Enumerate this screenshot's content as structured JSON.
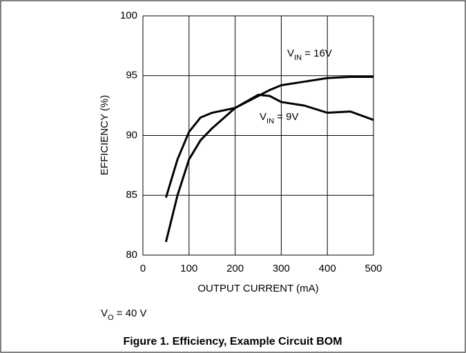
{
  "chart_data": {
    "type": "line",
    "ylabel": "EFFICIENCY (%)",
    "xlabel": "OUTPUT CURRENT (mA)",
    "x": [
      50,
      75,
      100,
      125,
      150,
      200,
      250,
      275,
      300,
      350,
      400,
      450,
      500
    ],
    "series": [
      {
        "color": "#000000",
        "values": [
          84.8,
          88,
          90.3,
          91.5,
          91.9,
          92.3,
          93.4,
          93.3,
          92.8,
          92.5,
          91.9,
          92.0,
          91.3
        ]
      },
      {
        "color": "#000000",
        "values": [
          81.1,
          85,
          88,
          89.6,
          90.6,
          92.3,
          93.3,
          93.8,
          94.2,
          94.5,
          94.8,
          94.9,
          94.9
        ]
      }
    ],
    "annotations": [
      {
        "parts": [
          "V",
          "IN",
          " = 16V"
        ]
      },
      {
        "parts": [
          "V",
          "IN",
          " = 9V"
        ]
      }
    ],
    "note": {
      "parts": [
        "V",
        "O",
        " = 40 V"
      ]
    },
    "caption": "Figure 1. Efficiency, Example Circuit BOM",
    "xlim": [
      0,
      500
    ],
    "xticks": [
      0,
      100,
      200,
      300,
      400,
      500
    ],
    "ylim": [
      80,
      100
    ],
    "yticks": [
      80,
      85,
      90,
      95,
      100
    ],
    "grid": true
  }
}
